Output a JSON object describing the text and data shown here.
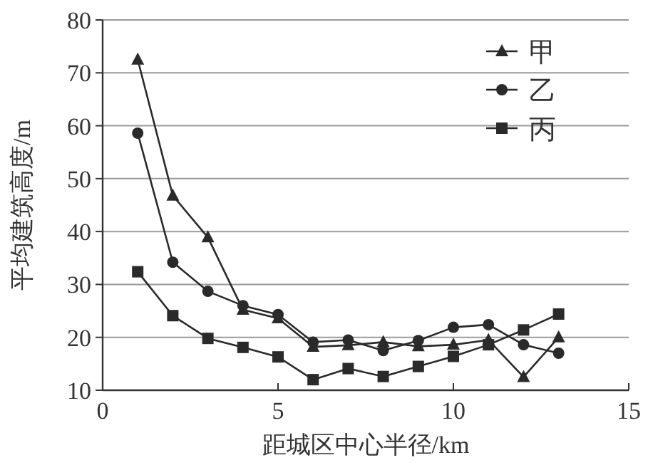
{
  "chart_data": {
    "type": "line",
    "xlabel": "距城区中心半径/km",
    "ylabel": "平均建筑高度/m",
    "xlim": [
      0,
      15
    ],
    "xticks": [
      0,
      5,
      10,
      15
    ],
    "ylim": [
      10,
      80
    ],
    "yticks": [
      10,
      20,
      30,
      40,
      50,
      60,
      70,
      80
    ],
    "grid": "y",
    "legend": "top right",
    "x": [
      1,
      2,
      3,
      4,
      5,
      6,
      7,
      8,
      9,
      10,
      11,
      12,
      13
    ],
    "series": [
      {
        "name": "甲",
        "color": "#2a2a2a",
        "marker": "triangle",
        "values": [
          72.5,
          46.8,
          38.9,
          25.2,
          23.6,
          18.2,
          18.5,
          19.1,
          18.3,
          18.6,
          19.5,
          12.5,
          20
        ]
      },
      {
        "name": "乙",
        "color": "#2a2a2a",
        "marker": "circle",
        "values": [
          58.6,
          34.2,
          28.7,
          26.0,
          24.3,
          19.1,
          19.5,
          17.5,
          19.4,
          21.9,
          22.4,
          18.6,
          17.0
        ]
      },
      {
        "name": "丙",
        "color": "#2a2a2a",
        "marker": "square",
        "values": [
          32.4,
          24.1,
          19.8,
          18.1,
          16.3,
          12.0,
          14.1,
          12.6,
          14.5,
          16.4,
          18.6,
          21.4,
          24.4
        ]
      }
    ]
  }
}
